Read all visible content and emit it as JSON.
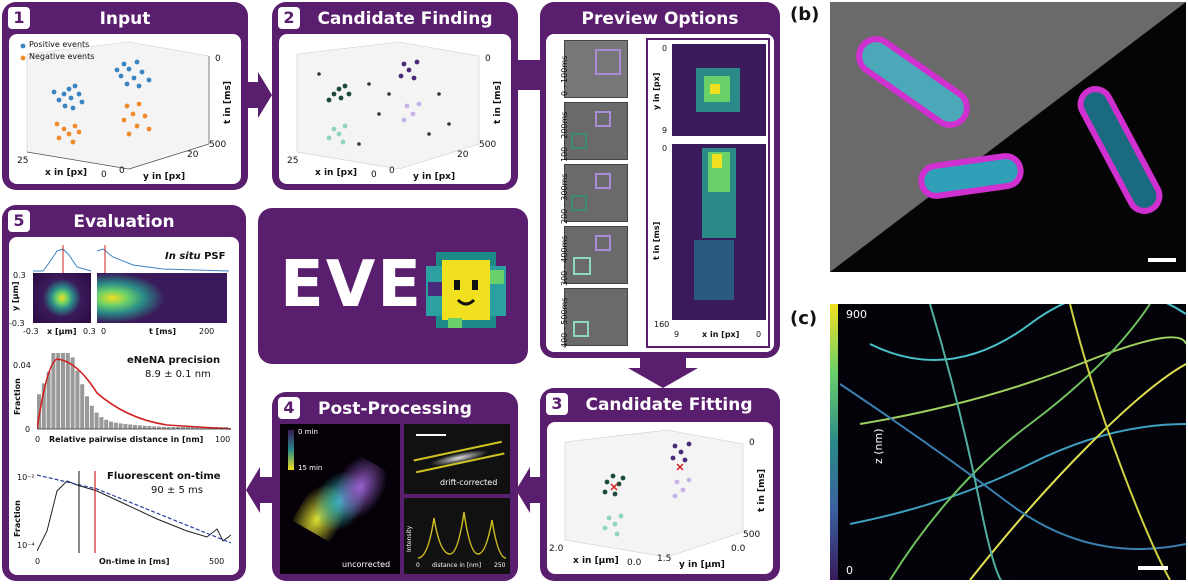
{
  "panels": {
    "input": {
      "number": "1",
      "title": "Input",
      "legend_pos": "Positive events",
      "legend_neg": "Negative events",
      "xlabel": "x in [px]",
      "ylabel": "y in [px]",
      "tlabel": "t in [ms]",
      "xticks": [
        "25",
        "0"
      ],
      "yticks": [
        "0",
        "20"
      ],
      "tticks": [
        "0",
        "500"
      ]
    },
    "candidate_finding": {
      "number": "2",
      "title": "Candidate Finding",
      "xlabel": "x in [px]",
      "ylabel": "y in [px]",
      "tlabel": "t in [ms]",
      "xticks": [
        "25",
        "0"
      ],
      "yticks": [
        "0",
        "20"
      ],
      "tticks": [
        "0",
        "500"
      ]
    },
    "preview": {
      "title": "Preview Options",
      "rows": [
        "0 - 100ms",
        "100 - 200ms",
        "200 - 300ms",
        "300 - 400ms",
        "400 - 500ms"
      ],
      "ylabel_top": "y in [px]",
      "ylabel_bottom": "t in [ms]",
      "xlabel": "x in [px]",
      "tick_top_0": "0",
      "tick_top_9": "9",
      "tick_t0": "0",
      "tick_t160": "160",
      "tick_x9": "9",
      "tick_x0": "0"
    },
    "candidate_fitting": {
      "number": "3",
      "title": "Candidate Fitting",
      "xlabel": "x in [µm]",
      "ylabel": "y in [µm]",
      "tlabel": "t in [ms]",
      "xticks": [
        "2.0",
        "0.0"
      ],
      "yticks": [
        "1.5",
        "0.0"
      ],
      "tticks": [
        "0",
        "500"
      ]
    },
    "post_processing": {
      "number": "4",
      "title": "Post-Processing",
      "cbar_top": "0 min",
      "cbar_bottom": "15 min",
      "uncorrected": "uncorrected",
      "drift_corrected": "drift-corrected",
      "intensity": "Intensity",
      "distance": "distance in [nm]",
      "dist_0": "0",
      "dist_250": "250"
    },
    "evaluation": {
      "number": "5",
      "title": "Evaluation",
      "psf_title_italic": "In situ",
      "psf_title": "PSF",
      "psf_ylabel": "y [µm]",
      "psf_xlabel": "x [µm]",
      "psf_tlabel": "t [ms]",
      "psf_yt_top": "0.3",
      "psf_yt_bot": "-0.3",
      "psf_xt_l": "-0.3",
      "psf_xt_r": "0.3",
      "psf_t0": "0",
      "psf_t200": "200",
      "enena_title": "eNeNA precision",
      "enena_value": "8.9 ± 0.1 nm",
      "frac_label": "Fraction",
      "enena_y": "0.04",
      "enena_y0": "0",
      "enena_xlabel": "Relative pairwise distance in [nm]",
      "enena_x0": "0",
      "enena_x100": "100",
      "ontime_title": "Fluorescent on-time",
      "ontime_value": "90 ± 5 ms",
      "ontime_ytop": "10⁻²",
      "ontime_ybot": "10⁻⁴",
      "ontime_xlabel": "On-time in [ms]",
      "ontime_x0": "0",
      "ontime_x500": "500"
    }
  },
  "logo": {
    "text": "EVE"
  },
  "panel_b": {
    "label": "(b)"
  },
  "panel_c": {
    "label": "(c)",
    "cbar_top": "900",
    "cbar_bottom": "0",
    "cbar_label": "z (nm)"
  },
  "colors": {
    "panel": "#5a1e6e",
    "pos": "#3a84c4",
    "neg": "#f08a2c"
  }
}
